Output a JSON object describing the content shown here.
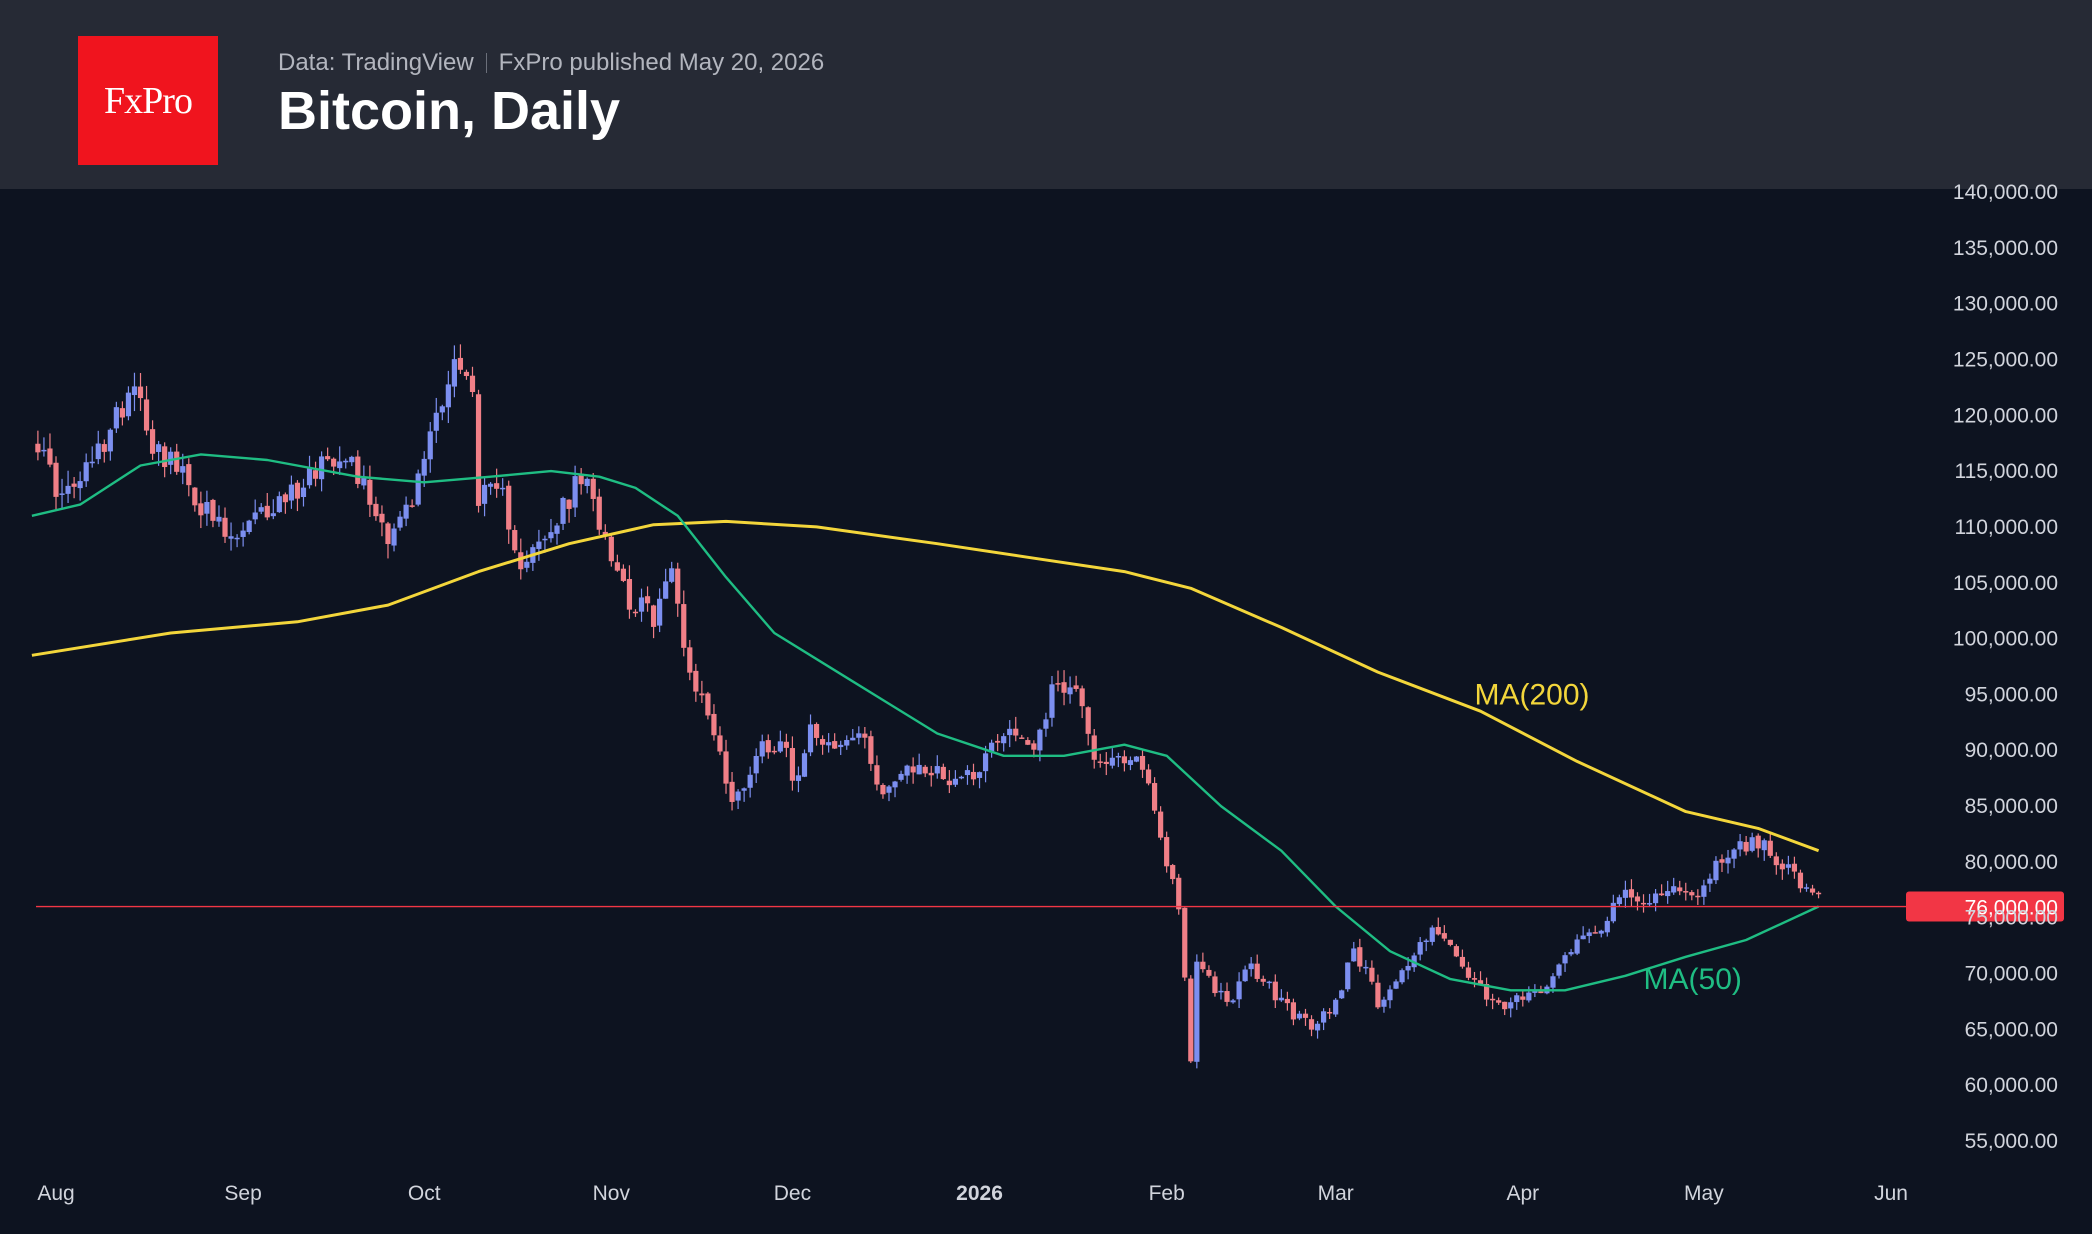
{
  "header": {
    "logo_text": "FxPro",
    "source": "Data: TradingView",
    "published": "FxPro published May 20, 2026",
    "title": "Bitcoin, Daily"
  },
  "colors": {
    "background": "#0d1320",
    "header": "#262a35",
    "logo": "#f0141e",
    "candle_up": "#7c8ff0",
    "candle_down": "#f07f87",
    "ma200": "#f3d63b",
    "ma50": "#1fbd83",
    "price_line": "#f23645"
  },
  "chart_data": {
    "type": "candlestick",
    "title": "Bitcoin, Daily",
    "interval": "Daily",
    "y_axis": {
      "position": "right",
      "range": [
        52000,
        141000
      ],
      "ticks": [
        "55,000.00",
        "60,000.00",
        "65,000.00",
        "70,000.00",
        "75,000.00",
        "80,000.00",
        "85,000.00",
        "90,000.00",
        "95,000.00",
        "100,000.00",
        "105,000.00",
        "110,000.00",
        "115,000.00",
        "120,000.00",
        "125,000.00",
        "130,000.00",
        "135,000.00",
        "140,000.00"
      ],
      "tick_values": [
        55000,
        60000,
        65000,
        70000,
        75000,
        80000,
        85000,
        90000,
        95000,
        100000,
        105000,
        110000,
        115000,
        120000,
        125000,
        130000,
        135000,
        140000
      ]
    },
    "x_axis": {
      "labels": [
        {
          "text": "Aug",
          "date": "2025-08-01",
          "bold": false
        },
        {
          "text": "Sep",
          "date": "2025-09-01",
          "bold": false
        },
        {
          "text": "Oct",
          "date": "2025-10-01",
          "bold": false
        },
        {
          "text": "Nov",
          "date": "2025-11-01",
          "bold": false
        },
        {
          "text": "Dec",
          "date": "2025-12-01",
          "bold": false
        },
        {
          "text": "2026",
          "date": "2026-01-01",
          "bold": true
        },
        {
          "text": "Feb",
          "date": "2026-02-01",
          "bold": false
        },
        {
          "text": "Mar",
          "date": "2026-03-01",
          "bold": false
        },
        {
          "text": "Apr",
          "date": "2026-04-01",
          "bold": false
        },
        {
          "text": "May",
          "date": "2026-05-01",
          "bold": false
        },
        {
          "text": "Jun",
          "date": "2026-06-01",
          "bold": false
        }
      ]
    },
    "close_path": [
      [
        "2025-07-28",
        118500
      ],
      [
        "2025-08-02",
        112500
      ],
      [
        "2025-08-05",
        114000
      ],
      [
        "2025-08-10",
        118500
      ],
      [
        "2025-08-14",
        123500
      ],
      [
        "2025-08-17",
        117500
      ],
      [
        "2025-08-20",
        116000
      ],
      [
        "2025-08-25",
        112000
      ],
      [
        "2025-08-30",
        108500
      ],
      [
        "2025-09-05",
        111500
      ],
      [
        "2025-09-10",
        113500
      ],
      [
        "2025-09-14",
        116000
      ],
      [
        "2025-09-18",
        117000
      ],
      [
        "2025-09-22",
        112500
      ],
      [
        "2025-09-25",
        109500
      ],
      [
        "2025-09-29",
        112000
      ],
      [
        "2025-10-02",
        118500
      ],
      [
        "2025-10-06",
        125000
      ],
      [
        "2025-10-09",
        122000
      ],
      [
        "2025-10-10",
        113000
      ],
      [
        "2025-10-14",
        112500
      ],
      [
        "2025-10-17",
        107000
      ],
      [
        "2025-10-21",
        108500
      ],
      [
        "2025-10-27",
        114500
      ],
      [
        "2025-10-31",
        109500
      ],
      [
        "2025-11-04",
        103500
      ],
      [
        "2025-11-08",
        102000
      ],
      [
        "2025-11-11",
        106000
      ],
      [
        "2025-11-14",
        97000
      ],
      [
        "2025-11-18",
        92000
      ],
      [
        "2025-11-21",
        85000
      ],
      [
        "2025-11-26",
        90500
      ],
      [
        "2025-11-30",
        91000
      ],
      [
        "2025-12-01",
        86500
      ],
      [
        "2025-12-04",
        92500
      ],
      [
        "2025-12-08",
        90000
      ],
      [
        "2025-12-12",
        91500
      ],
      [
        "2025-12-16",
        86500
      ],
      [
        "2025-12-22",
        88500
      ],
      [
        "2025-12-27",
        87500
      ],
      [
        "2025-12-31",
        88000
      ],
      [
        "2026-01-05",
        92000
      ],
      [
        "2026-01-10",
        90500
      ],
      [
        "2026-01-14",
        96500
      ],
      [
        "2026-01-18",
        94500
      ],
      [
        "2026-01-20",
        89500
      ],
      [
        "2026-01-25",
        88500
      ],
      [
        "2026-01-28",
        89000
      ],
      [
        "2026-02-01",
        80000
      ],
      [
        "2026-02-03",
        76500
      ],
      [
        "2026-02-05",
        62500
      ],
      [
        "2026-02-06",
        70500
      ],
      [
        "2026-02-11",
        67500
      ],
      [
        "2026-02-15",
        70500
      ],
      [
        "2026-02-20",
        67500
      ],
      [
        "2026-02-25",
        65000
      ],
      [
        "2026-03-01",
        67500
      ],
      [
        "2026-03-04",
        72500
      ],
      [
        "2026-03-08",
        67500
      ],
      [
        "2026-03-14",
        71500
      ],
      [
        "2026-03-17",
        74500
      ],
      [
        "2026-03-22",
        70500
      ],
      [
        "2026-03-27",
        67000
      ],
      [
        "2026-04-01",
        67500
      ],
      [
        "2026-04-05",
        69500
      ],
      [
        "2026-04-09",
        72500
      ],
      [
        "2026-04-14",
        74500
      ],
      [
        "2026-04-17",
        77000
      ],
      [
        "2026-04-21",
        76000
      ],
      [
        "2026-04-25",
        78000
      ],
      [
        "2026-04-29",
        76500
      ],
      [
        "2026-05-02",
        79000
      ],
      [
        "2026-05-06",
        81500
      ],
      [
        "2026-05-11",
        81500
      ],
      [
        "2026-05-15",
        79500
      ],
      [
        "2026-05-18",
        77000
      ],
      [
        "2026-05-20",
        76800
      ]
    ],
    "series": [
      {
        "name": "MA(200)",
        "color": "#f3d63b",
        "points": [
          [
            "2025-07-28",
            98500
          ],
          [
            "2025-08-20",
            100500
          ],
          [
            "2025-09-10",
            101500
          ],
          [
            "2025-09-25",
            103000
          ],
          [
            "2025-10-10",
            106000
          ],
          [
            "2025-10-25",
            108500
          ],
          [
            "2025-11-08",
            110200
          ],
          [
            "2025-11-20",
            110500
          ],
          [
            "2025-12-05",
            110000
          ],
          [
            "2025-12-25",
            108500
          ],
          [
            "2026-01-10",
            107200
          ],
          [
            "2026-01-25",
            106000
          ],
          [
            "2026-02-05",
            104500
          ],
          [
            "2026-02-20",
            101000
          ],
          [
            "2026-03-08",
            97000
          ],
          [
            "2026-03-25",
            93500
          ],
          [
            "2026-04-10",
            89000
          ],
          [
            "2026-04-28",
            84500
          ],
          [
            "2026-05-10",
            83000
          ],
          [
            "2026-05-20",
            81000
          ]
        ]
      },
      {
        "name": "MA(50)",
        "color": "#1fbd83",
        "points": [
          [
            "2025-07-28",
            111000
          ],
          [
            "2025-08-05",
            112000
          ],
          [
            "2025-08-15",
            115500
          ],
          [
            "2025-08-25",
            116500
          ],
          [
            "2025-09-05",
            116000
          ],
          [
            "2025-09-20",
            114500
          ],
          [
            "2025-10-01",
            114000
          ],
          [
            "2025-10-12",
            114500
          ],
          [
            "2025-10-22",
            115000
          ],
          [
            "2025-10-30",
            114500
          ],
          [
            "2025-11-05",
            113500
          ],
          [
            "2025-11-12",
            111000
          ],
          [
            "2025-11-20",
            105500
          ],
          [
            "2025-11-28",
            100500
          ],
          [
            "2025-12-10",
            96500
          ],
          [
            "2025-12-25",
            91500
          ],
          [
            "2026-01-05",
            89500
          ],
          [
            "2026-01-15",
            89500
          ],
          [
            "2026-01-25",
            90500
          ],
          [
            "2026-02-01",
            89500
          ],
          [
            "2026-02-10",
            85000
          ],
          [
            "2026-02-20",
            81000
          ],
          [
            "2026-03-01",
            76000
          ],
          [
            "2026-03-10",
            72000
          ],
          [
            "2026-03-20",
            69500
          ],
          [
            "2026-03-30",
            68500
          ],
          [
            "2026-04-08",
            68500
          ],
          [
            "2026-04-18",
            69800
          ],
          [
            "2026-04-28",
            71500
          ],
          [
            "2026-05-08",
            73000
          ],
          [
            "2026-05-20",
            76000
          ]
        ]
      }
    ],
    "annotations": [
      {
        "text": "MA(200)",
        "color": "#f3d63b",
        "date": "2026-03-24",
        "value": 95000
      },
      {
        "text": "MA(50)",
        "color": "#1fbd83",
        "date": "2026-04-21",
        "value": 69500
      }
    ],
    "horizontal_line": {
      "value": 76000,
      "label": "76,000.00",
      "color": "#f23645"
    },
    "grid": false,
    "legend": "none"
  }
}
